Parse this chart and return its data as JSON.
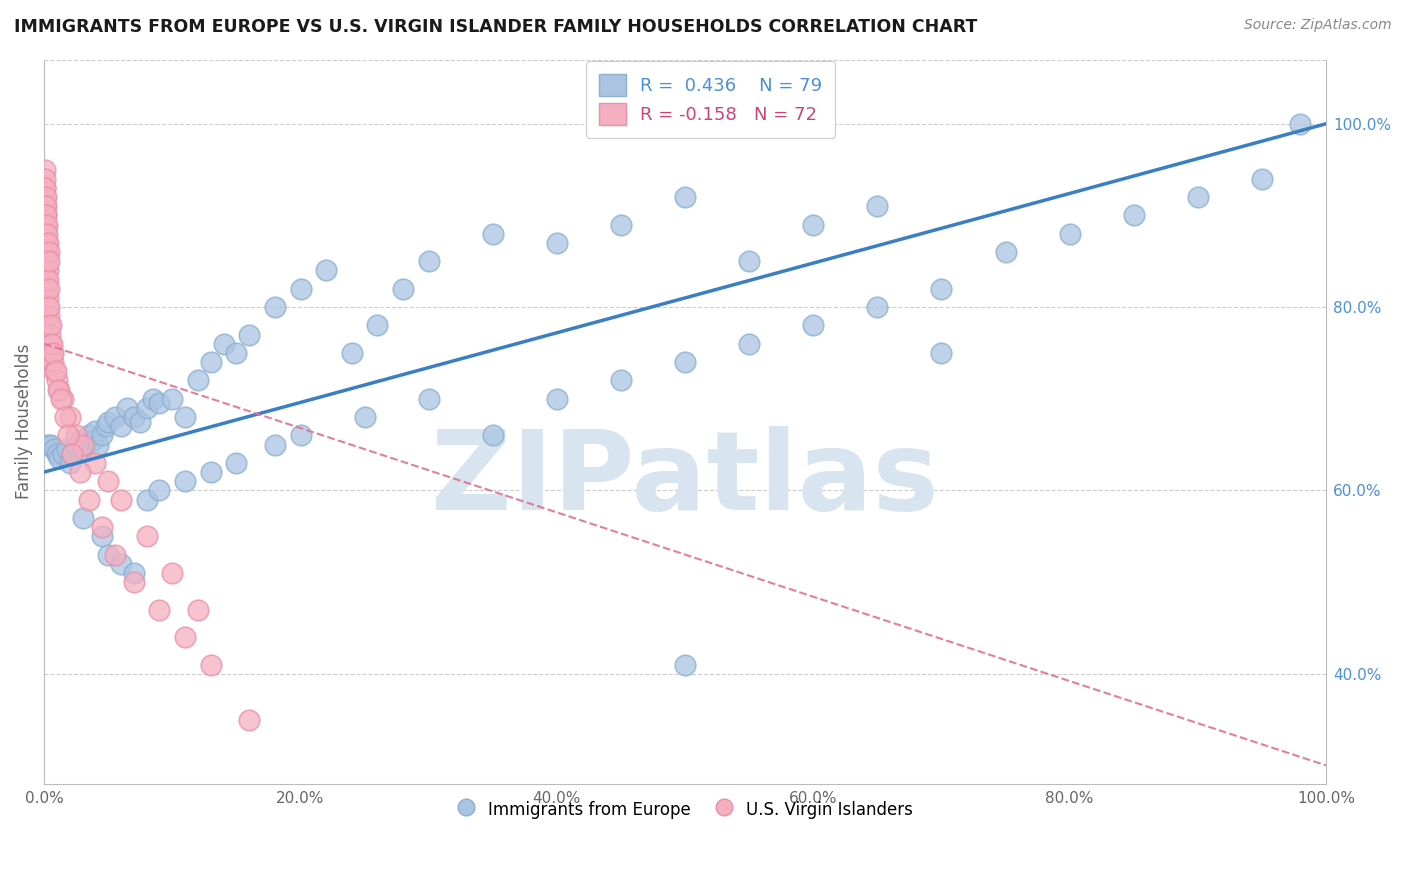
{
  "title": "IMMIGRANTS FROM EUROPE VS U.S. VIRGIN ISLANDER FAMILY HOUSEHOLDS CORRELATION CHART",
  "source": "Source: ZipAtlas.com",
  "ylabel": "Family Households",
  "R_blue": 0.436,
  "N_blue": 79,
  "R_pink": -0.158,
  "N_pink": 72,
  "blue_color": "#aac4e2",
  "blue_edge": "#8aafd0",
  "pink_color": "#f5afc0",
  "pink_edge": "#e890a8",
  "trend_blue": "#3a7fc1",
  "trend_pink": "#e07090",
  "watermark": "ZIPatlas",
  "watermark_color": "#d8e4f0",
  "blue_scatter_x": [
    0.3,
    0.5,
    0.8,
    1.0,
    1.2,
    1.5,
    1.8,
    2.0,
    2.2,
    2.5,
    2.8,
    3.0,
    3.2,
    3.5,
    3.8,
    4.0,
    4.2,
    4.5,
    4.8,
    5.0,
    5.5,
    6.0,
    6.5,
    7.0,
    7.5,
    8.0,
    8.5,
    9.0,
    10.0,
    11.0,
    12.0,
    13.0,
    14.0,
    15.0,
    16.0,
    18.0,
    20.0,
    22.0,
    24.0,
    26.0,
    28.0,
    30.0,
    35.0,
    40.0,
    45.0,
    50.0,
    55.0,
    60.0,
    65.0,
    70.0,
    75.0,
    80.0,
    85.0,
    90.0,
    95.0,
    98.0,
    3.0,
    4.5,
    5.0,
    6.0,
    7.0,
    8.0,
    9.0,
    11.0,
    13.0,
    15.0,
    18.0,
    20.0,
    25.0,
    30.0,
    35.0,
    40.0,
    45.0,
    50.0,
    55.0,
    60.0,
    65.0,
    70.0,
    50.0
  ],
  "blue_scatter_y": [
    65.0,
    65.0,
    64.5,
    64.0,
    63.5,
    64.0,
    64.5,
    63.0,
    64.0,
    65.0,
    65.5,
    64.5,
    65.0,
    66.0,
    65.5,
    66.5,
    65.0,
    66.0,
    67.0,
    67.5,
    68.0,
    67.0,
    69.0,
    68.0,
    67.5,
    69.0,
    70.0,
    69.5,
    70.0,
    68.0,
    72.0,
    74.0,
    76.0,
    75.0,
    77.0,
    80.0,
    82.0,
    84.0,
    75.0,
    78.0,
    82.0,
    85.0,
    88.0,
    87.0,
    89.0,
    92.0,
    85.0,
    89.0,
    91.0,
    75.0,
    86.0,
    88.0,
    90.0,
    92.0,
    94.0,
    100.0,
    57.0,
    55.0,
    53.0,
    52.0,
    51.0,
    59.0,
    60.0,
    61.0,
    62.0,
    63.0,
    65.0,
    66.0,
    68.0,
    70.0,
    66.0,
    70.0,
    72.0,
    74.0,
    76.0,
    78.0,
    80.0,
    82.0,
    41.0
  ],
  "pink_scatter_x": [
    0.05,
    0.08,
    0.1,
    0.12,
    0.15,
    0.18,
    0.2,
    0.22,
    0.25,
    0.28,
    0.3,
    0.35,
    0.4,
    0.45,
    0.5,
    0.6,
    0.7,
    0.8,
    1.0,
    1.2,
    1.5,
    2.0,
    2.5,
    3.0,
    4.0,
    5.0,
    6.0,
    8.0,
    10.0,
    12.0,
    0.05,
    0.08,
    0.1,
    0.13,
    0.15,
    0.17,
    0.2,
    0.23,
    0.25,
    0.28,
    0.3,
    0.35,
    0.4,
    0.5,
    0.6,
    0.7,
    0.9,
    1.1,
    1.3,
    1.6,
    1.9,
    2.2,
    2.8,
    3.5,
    4.5,
    5.5,
    7.0,
    9.0,
    11.0,
    13.0,
    0.05,
    0.08,
    0.1,
    0.12,
    0.15,
    0.18,
    0.2,
    0.25,
    0.3,
    0.35,
    0.4,
    16.0
  ],
  "pink_scatter_y": [
    91.0,
    90.0,
    88.0,
    87.0,
    86.0,
    85.0,
    84.0,
    83.0,
    82.0,
    81.0,
    80.0,
    79.0,
    78.0,
    77.0,
    76.0,
    75.0,
    74.0,
    73.0,
    72.0,
    71.0,
    70.0,
    68.0,
    66.0,
    65.0,
    63.0,
    61.0,
    59.0,
    55.0,
    51.0,
    47.0,
    93.0,
    92.0,
    91.0,
    90.0,
    89.0,
    88.0,
    87.0,
    86.0,
    85.0,
    84.0,
    83.0,
    82.0,
    80.0,
    78.0,
    76.0,
    75.0,
    73.0,
    71.0,
    70.0,
    68.0,
    66.0,
    64.0,
    62.0,
    59.0,
    56.0,
    53.0,
    50.0,
    47.0,
    44.0,
    41.0,
    95.0,
    94.0,
    93.0,
    92.0,
    91.0,
    90.0,
    89.0,
    88.0,
    87.0,
    86.0,
    85.0,
    35.0
  ],
  "xlim": [
    0,
    100
  ],
  "ylim": [
    28,
    107
  ],
  "xticks": [
    0,
    20,
    40,
    60,
    80,
    100
  ],
  "xticklabels": [
    "0.0%",
    "20.0%",
    "40.0%",
    "60.0%",
    "80.0%",
    "100.0%"
  ],
  "ytick_right": [
    40.0,
    60.0,
    80.0,
    100.0
  ],
  "ytick_right_labels": [
    "40.0%",
    "60.0%",
    "80.0%",
    "100.0%"
  ],
  "blue_trend_x0": 0,
  "blue_trend_y0": 62.0,
  "blue_trend_x1": 100,
  "blue_trend_y1": 100.0,
  "pink_trend_x0": 0,
  "pink_trend_y0": 76.0,
  "pink_trend_x1": 100,
  "pink_trend_y1": 30.0,
  "grid_color": "#cccccc",
  "grid_style": "--",
  "background_color": "#ffffff",
  "tick_color": "#666666",
  "right_tick_color": "#4a90d9",
  "ylabel_color": "#666666",
  "title_color": "#1a1a1a",
  "source_color": "#888888",
  "legend_label_blue": "R =  0.436    N = 79",
  "legend_label_pink": "R = -0.158   N = 72",
  "bottom_legend_blue": "Immigrants from Europe",
  "bottom_legend_pink": "U.S. Virgin Islanders"
}
